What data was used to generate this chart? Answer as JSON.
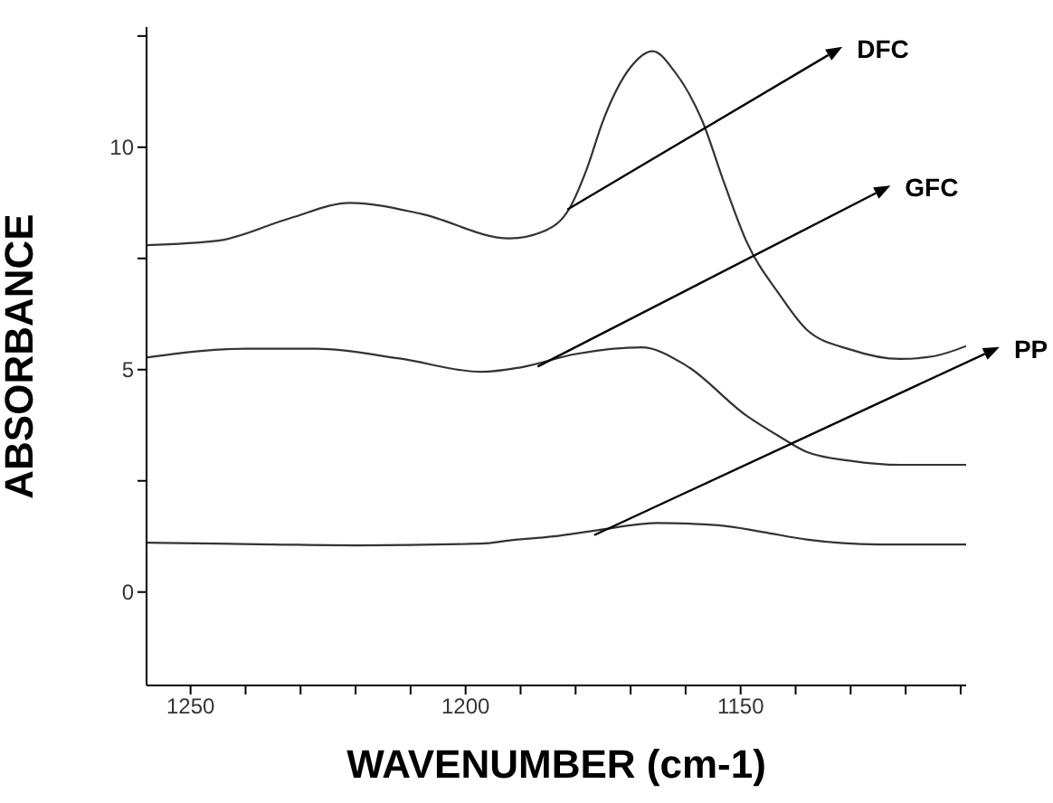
{
  "chart_data": {
    "type": "line",
    "xlabel": "WAVENUMBER (cm-1)",
    "ylabel": "ABSORBANCE",
    "xlim": [
      1258,
      1109
    ],
    "ylim": [
      -2.1,
      12.7
    ],
    "xticks": [
      1250,
      {
        "value": 1240,
        "label": null
      },
      {
        "value": 1230,
        "label": null
      },
      {
        "value": 1220,
        "label": null
      },
      {
        "value": 1210,
        "label": null
      },
      1200,
      {
        "value": 1190,
        "label": null
      },
      {
        "value": 1180,
        "label": null
      },
      {
        "value": 1170,
        "label": null
      },
      {
        "value": 1160,
        "label": null
      },
      1150,
      {
        "value": 1140,
        "label": null
      },
      {
        "value": 1130,
        "label": null
      },
      {
        "value": 1120,
        "label": null
      },
      {
        "value": 1110,
        "label": null
      }
    ],
    "yticks": [
      0,
      {
        "value": 2.5,
        "label": null
      },
      5,
      {
        "value": 7.5,
        "label": null
      },
      10,
      {
        "value": 12.5,
        "label": null
      }
    ],
    "grid": false,
    "legend": false,
    "marker": "none",
    "line_style": "solid",
    "series": [
      {
        "color": "#333333",
        "x": [
          1258,
          1245,
          1232,
          1221,
          1208,
          1192,
          1186,
          1181,
          1178,
          1175,
          1170,
          1166,
          1162,
          1157,
          1153,
          1149,
          1143,
          1138,
          1130,
          1121,
          1115,
          1109
        ],
        "values": [
          7.8,
          7.9,
          8.4,
          8.75,
          8.5,
          7.95,
          8.1,
          8.65,
          9.5,
          10.6,
          11.8,
          12.16,
          11.7,
          10.6,
          9.2,
          7.9,
          6.7,
          5.9,
          5.45,
          5.24,
          5.3,
          5.53
        ]
      },
      {
        "color": "#333333",
        "x": [
          1258,
          1240,
          1227,
          1212,
          1197,
          1190,
          1180,
          1168,
          1160,
          1149,
          1143,
          1138,
          1130,
          1121,
          1109
        ],
        "values": [
          5.27,
          5.47,
          5.47,
          5.25,
          4.95,
          5.05,
          5.35,
          5.5,
          5.1,
          3.97,
          3.5,
          3.15,
          2.95,
          2.86,
          2.86
        ]
      },
      {
        "color": "#333333",
        "x": [
          1258,
          1235,
          1219,
          1197,
          1192,
          1184,
          1176,
          1165,
          1154,
          1146,
          1138,
          1125,
          1109
        ],
        "values": [
          1.11,
          1.07,
          1.05,
          1.09,
          1.16,
          1.25,
          1.39,
          1.55,
          1.5,
          1.35,
          1.18,
          1.07,
          1.07
        ]
      }
    ],
    "annotations": [
      {
        "text": "DFC",
        "x": 1181.5,
        "y": 8.6
      },
      {
        "text": "GFC",
        "x": 1186.9,
        "y": 5.07
      },
      {
        "text": "PP",
        "x": 1176.6,
        "y": 1.28
      }
    ]
  }
}
